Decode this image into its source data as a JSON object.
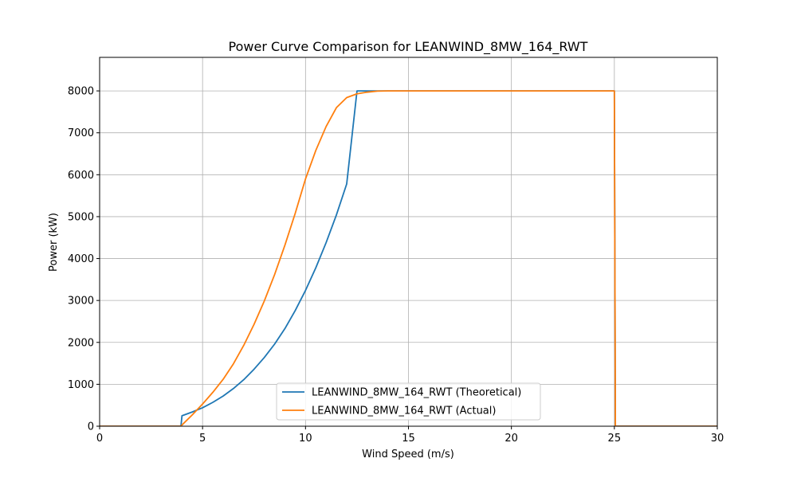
{
  "chart_data": {
    "type": "line",
    "title": "Power Curve Comparison for LEANWIND_8MW_164_RWT",
    "xlabel": "Wind Speed (m/s)",
    "ylabel": "Power (kW)",
    "xlim": [
      0,
      30
    ],
    "ylim": [
      0,
      8800
    ],
    "xticks": [
      0,
      5,
      10,
      15,
      20,
      25,
      30
    ],
    "yticks": [
      0,
      1000,
      2000,
      3000,
      4000,
      5000,
      6000,
      7000,
      8000
    ],
    "grid": true,
    "legend_position": "bottom-center",
    "series": [
      {
        "name": "LEANWIND_8MW_164_RWT (Theoretical)",
        "color": "#1f77b4",
        "x": [
          0,
          3.95,
          4.0,
          4.5,
          5,
          5.5,
          6,
          6.5,
          7,
          7.5,
          8,
          8.5,
          9,
          9.5,
          10,
          10.5,
          11,
          11.5,
          12,
          12.5,
          13,
          14,
          16,
          18,
          20,
          22,
          24,
          25,
          25.05,
          30
        ],
        "y": [
          0,
          0,
          250,
          340,
          440,
          570,
          720,
          900,
          1110,
          1360,
          1640,
          1960,
          2330,
          2760,
          3240,
          3780,
          4380,
          5040,
          5780,
          8000,
          8000,
          8000,
          8000,
          8000,
          8000,
          8000,
          8000,
          8000,
          0,
          0
        ]
      },
      {
        "name": "LEANWIND_8MW_164_RWT (Actual)",
        "color": "#ff7f0e",
        "x": [
          0,
          3.95,
          4.0,
          4.5,
          5,
          5.5,
          6,
          6.5,
          7,
          7.5,
          8,
          8.5,
          9,
          9.5,
          10,
          10.5,
          11,
          11.5,
          12,
          12.5,
          13,
          13.5,
          14,
          16,
          18,
          20,
          22,
          24,
          25,
          25.05,
          30
        ],
        "y": [
          0,
          0,
          30,
          270,
          530,
          810,
          1120,
          1490,
          1930,
          2430,
          2990,
          3620,
          4320,
          5080,
          5900,
          6580,
          7150,
          7600,
          7840,
          7930,
          7970,
          7995,
          8000,
          8000,
          8000,
          8000,
          8000,
          8000,
          8000,
          0,
          0
        ]
      }
    ]
  }
}
